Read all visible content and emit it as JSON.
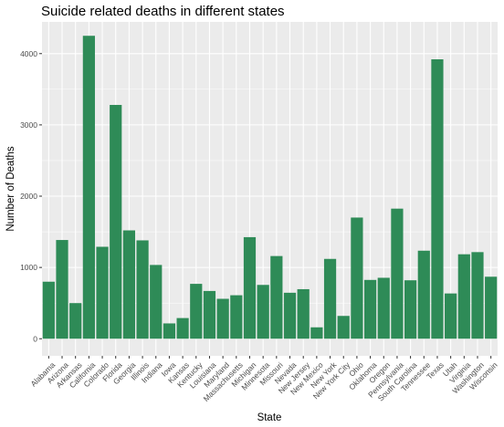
{
  "chart_data": {
    "type": "bar",
    "title": "Suicide related deaths in different states",
    "xlabel": "State",
    "ylabel": "Number of Deaths",
    "categories": [
      "Alabama",
      "Arizona",
      "Arkansas",
      "California",
      "Colorado",
      "Florida",
      "Georgia",
      "Illinois",
      "Indiana",
      "Iowa",
      "Kansas",
      "Kentucky",
      "Louisiana",
      "Maryland",
      "Massachusetts",
      "Michigan",
      "Minnesota",
      "Missouri",
      "Nevada",
      "New Jersey",
      "New Mexico",
      "New York",
      "New York City",
      "Ohio",
      "Oklahoma",
      "Oregon",
      "Pennsylvania",
      "South Carolina",
      "Tennessee",
      "Texas",
      "Utah",
      "Virginia",
      "Washington",
      "Wisconsin"
    ],
    "values": [
      800,
      1385,
      500,
      4250,
      1290,
      3280,
      1520,
      1380,
      1035,
      215,
      290,
      770,
      670,
      560,
      610,
      1425,
      755,
      1160,
      645,
      695,
      160,
      1120,
      320,
      1700,
      825,
      855,
      1825,
      820,
      1235,
      3920,
      635,
      1185,
      1215,
      870
    ],
    "ylim": [
      -240,
      4445
    ],
    "yticks": [
      0,
      1000,
      2000,
      3000,
      4000
    ],
    "grid": true,
    "legend": "none",
    "bar_color": "#2e8b57",
    "panel_background": "#ebebeb"
  }
}
